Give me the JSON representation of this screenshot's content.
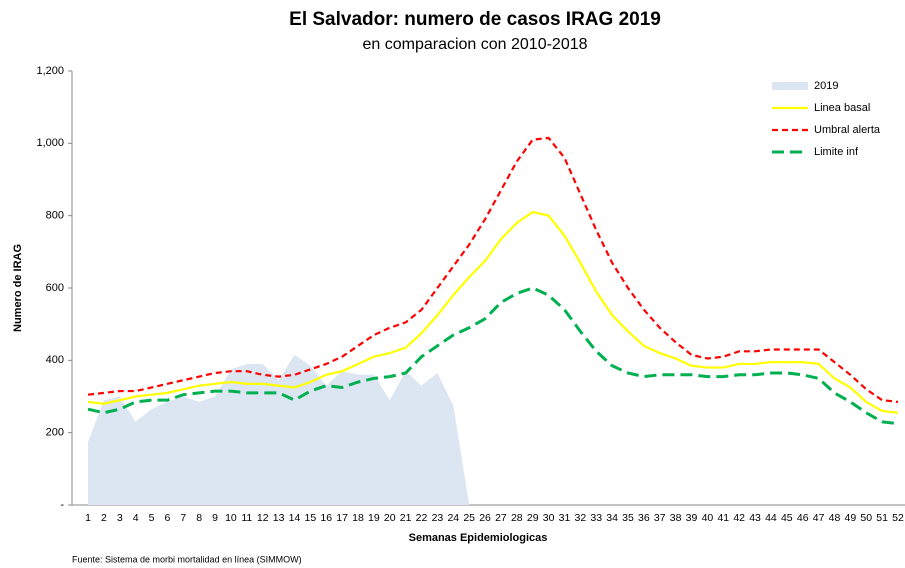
{
  "chart_data": {
    "type": "line",
    "title": "El Salvador: numero de casos IRAG 2019",
    "subtitle": "en comparacion con 2010-2018",
    "y_label": "Numero de IRAG",
    "x_label": "Semanas Epidemiologicas",
    "source": "Fuente: Sistema de morbi mortalidad en línea (SIMMOW)",
    "categories": [
      "1",
      "2",
      "3",
      "4",
      "5",
      "6",
      "7",
      "8",
      "9",
      "10",
      "11",
      "12",
      "13",
      "14",
      "15",
      "16",
      "17",
      "18",
      "19",
      "20",
      "21",
      "22",
      "23",
      "24",
      "25",
      "26",
      "27",
      "28",
      "29",
      "30",
      "31",
      "32",
      "33",
      "34",
      "35",
      "36",
      "37",
      "38",
      "39",
      "40",
      "41",
      "42",
      "43",
      "44",
      "45",
      "46",
      "47",
      "48",
      "49",
      "50",
      "51",
      "52"
    ],
    "ylim": [
      0,
      1200
    ],
    "yticks": [
      {
        "value": 0,
        "label": "-"
      },
      200,
      400,
      600,
      800,
      {
        "value": 1000,
        "label": "1,000"
      },
      {
        "value": 1200,
        "label": "1,200"
      }
    ],
    "legend": "top-right",
    "series": [
      {
        "name": "2019",
        "kind": "area",
        "color": "#dce6f2",
        "values": [
          175,
          290,
          300,
          230,
          265,
          285,
          300,
          285,
          300,
          375,
          390,
          390,
          345,
          415,
          385,
          330,
          370,
          360,
          360,
          290,
          370,
          330,
          365,
          275,
          0,
          null,
          null,
          null,
          null,
          null,
          null,
          null,
          null,
          null,
          null,
          null,
          null,
          null,
          null,
          null,
          null,
          null,
          null,
          null,
          null,
          null,
          null,
          null,
          null,
          null,
          null,
          null
        ]
      },
      {
        "name": "Linea basal",
        "kind": "solid",
        "color": "#ffff00",
        "values": [
          285,
          280,
          290,
          300,
          305,
          310,
          320,
          330,
          335,
          340,
          335,
          335,
          330,
          325,
          340,
          360,
          370,
          390,
          410,
          420,
          435,
          475,
          525,
          580,
          630,
          675,
          735,
          780,
          810,
          800,
          745,
          670,
          590,
          525,
          480,
          440,
          420,
          405,
          385,
          380,
          380,
          390,
          390,
          395,
          395,
          395,
          390,
          350,
          325,
          285,
          260,
          255
        ]
      },
      {
        "name": "Umbral alerta",
        "kind": "dashed",
        "color": "#ff0000",
        "values": [
          305,
          310,
          315,
          315,
          325,
          335,
          345,
          355,
          365,
          370,
          370,
          360,
          355,
          360,
          375,
          390,
          410,
          440,
          470,
          490,
          505,
          540,
          600,
          660,
          720,
          790,
          870,
          950,
          1010,
          1015,
          960,
          860,
          760,
          670,
          600,
          540,
          490,
          450,
          415,
          405,
          410,
          425,
          425,
          430,
          430,
          430,
          430,
          395,
          360,
          320,
          290,
          285
        ]
      },
      {
        "name": "Limite inf",
        "kind": "bigdash",
        "color": "#00b050",
        "values": [
          265,
          255,
          265,
          285,
          290,
          290,
          305,
          310,
          315,
          315,
          310,
          310,
          310,
          290,
          315,
          330,
          325,
          340,
          350,
          355,
          365,
          410,
          440,
          470,
          490,
          515,
          560,
          585,
          600,
          580,
          540,
          480,
          425,
          385,
          365,
          355,
          360,
          360,
          360,
          355,
          355,
          360,
          360,
          365,
          365,
          360,
          350,
          310,
          285,
          255,
          230,
          225
        ]
      }
    ]
  }
}
